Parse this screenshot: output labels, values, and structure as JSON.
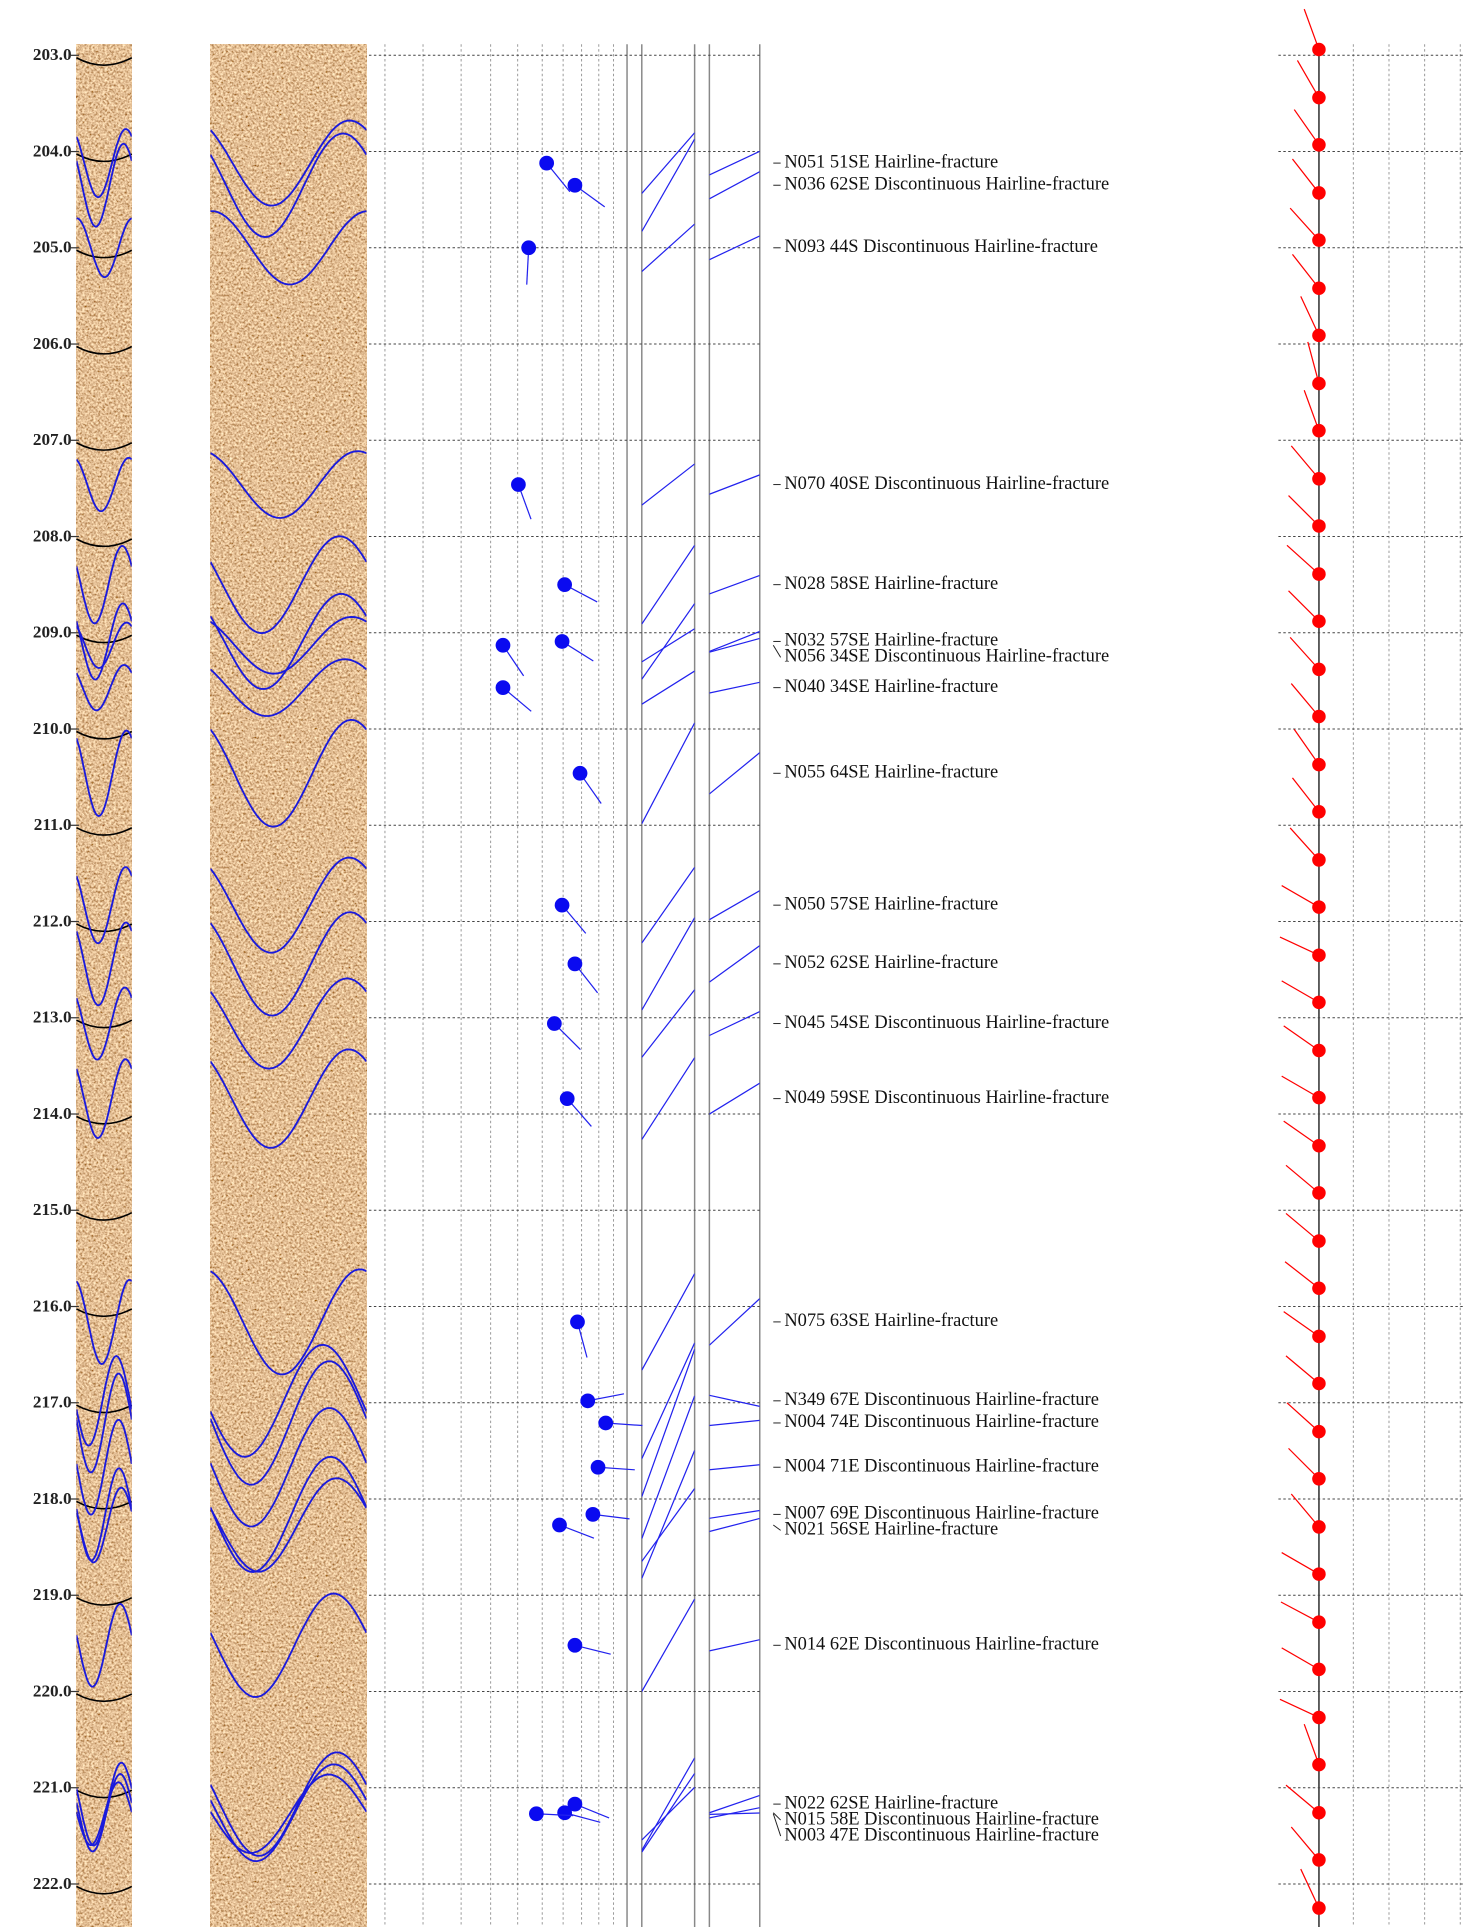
{
  "depth_axis": {
    "ticks": [
      {
        "value": 203,
        "label": "203.0"
      },
      {
        "value": 204,
        "label": "204.0"
      },
      {
        "value": 205,
        "label": "205.0"
      },
      {
        "value": 206,
        "label": "206.0"
      },
      {
        "value": 207,
        "label": "207.0"
      },
      {
        "value": 208,
        "label": "208.0"
      },
      {
        "value": 209,
        "label": "209.0"
      },
      {
        "value": 210,
        "label": "210.0"
      },
      {
        "value": 211,
        "label": "211.0"
      },
      {
        "value": 212,
        "label": "212.0"
      },
      {
        "value": 213,
        "label": "213.0"
      },
      {
        "value": 214,
        "label": "214.0"
      },
      {
        "value": 215,
        "label": "215.0"
      },
      {
        "value": 216,
        "label": "216.0"
      },
      {
        "value": 217,
        "label": "217.0"
      },
      {
        "value": 218,
        "label": "218.0"
      },
      {
        "value": 219,
        "label": "219.0"
      },
      {
        "value": 220,
        "label": "220.0"
      },
      {
        "value": 221,
        "label": "221.0"
      },
      {
        "value": 222,
        "label": "222.0"
      }
    ]
  },
  "fractures": [
    {
      "label": "N051 51SE Hairline-fracture",
      "depth": 204.12,
      "strike": 51,
      "dip": 51
    },
    {
      "label": "N036 62SE Discontinuous Hairline-fracture",
      "depth": 204.35,
      "strike": 36,
      "dip": 62
    },
    {
      "label": "N093 44S Discontinuous Hairline-fracture",
      "depth": 205.0,
      "strike": 93,
      "dip": 44
    },
    {
      "label": "N070 40SE Discontinuous Hairline-fracture",
      "depth": 207.46,
      "strike": 70,
      "dip": 40
    },
    {
      "label": "N028 58SE Hairline-fracture",
      "depth": 208.5,
      "strike": 28,
      "dip": 58
    },
    {
      "label": "N032 57SE Hairline-fracture",
      "depth": 209.09,
      "strike": 32,
      "dip": 57
    },
    {
      "label": "N056 34SE Discontinuous Hairline-fracture",
      "depth": 209.13,
      "strike": 56,
      "dip": 34
    },
    {
      "label": "N040 34SE Hairline-fracture",
      "depth": 209.57,
      "strike": 40,
      "dip": 34
    },
    {
      "label": "N055 64SE Hairline-fracture",
      "depth": 210.46,
      "strike": 55,
      "dip": 64
    },
    {
      "label": "N050 57SE Hairline-fracture",
      "depth": 211.83,
      "strike": 50,
      "dip": 57
    },
    {
      "label": "N052 62SE Hairline-fracture",
      "depth": 212.44,
      "strike": 52,
      "dip": 62
    },
    {
      "label": "N045 54SE Discontinuous Hairline-fracture",
      "depth": 213.06,
      "strike": 45,
      "dip": 54
    },
    {
      "label": "N049 59SE Discontinuous Hairline-fracture",
      "depth": 213.84,
      "strike": 49,
      "dip": 59
    },
    {
      "label": "N075 63SE Hairline-fracture",
      "depth": 216.16,
      "strike": 75,
      "dip": 63
    },
    {
      "label": "N349 67E Discontinuous Hairline-fracture",
      "depth": 216.98,
      "strike": 349,
      "dip": 67
    },
    {
      "label": "N004 74E Discontinuous Hairline-fracture",
      "depth": 217.21,
      "strike": 4,
      "dip": 74
    },
    {
      "label": "N004 71E Discontinuous Hairline-fracture",
      "depth": 217.67,
      "strike": 4,
      "dip": 71
    },
    {
      "label": "N007 69E Discontinuous Hairline-fracture",
      "depth": 218.16,
      "strike": 7,
      "dip": 69
    },
    {
      "label": "N021 56SE Hairline-fracture",
      "depth": 218.27,
      "strike": 21,
      "dip": 56
    },
    {
      "label": "N014 62E Discontinuous Hairline-fracture",
      "depth": 219.52,
      "strike": 14,
      "dip": 62
    },
    {
      "label": "N022 62SE Hairline-fracture",
      "depth": 221.17,
      "strike": 22,
      "dip": 62
    },
    {
      "label": "N015 58E Discontinuous Hairline-fracture",
      "depth": 221.26,
      "strike": 15,
      "dip": 58
    },
    {
      "label": "N003 47E Discontinuous Hairline-fracture",
      "depth": 221.27,
      "strike": 3,
      "dip": 47
    }
  ],
  "orientation": {
    "depths": [
      202.94,
      203.44,
      203.93,
      204.43,
      204.92,
      205.42,
      205.91,
      206.41,
      206.9,
      207.4,
      207.89,
      208.39,
      208.88,
      209.38,
      209.87,
      210.37,
      210.86,
      211.36,
      211.85,
      212.35,
      212.84,
      213.34,
      213.83,
      214.33,
      214.82,
      215.32,
      215.81,
      216.31,
      216.8,
      217.3,
      217.79,
      218.29,
      218.78,
      219.28,
      219.77,
      220.27,
      220.76,
      221.26,
      221.75,
      222.25
    ],
    "azimuths": [
      340,
      330,
      325,
      322,
      318,
      322,
      335,
      345,
      340,
      320,
      315,
      312,
      315,
      318,
      320,
      325,
      322,
      318,
      300,
      295,
      300,
      305,
      300,
      305,
      310,
      310,
      308,
      305,
      310,
      312,
      315,
      320,
      300,
      298,
      300,
      295,
      340,
      310,
      320,
      335
    ]
  }
}
